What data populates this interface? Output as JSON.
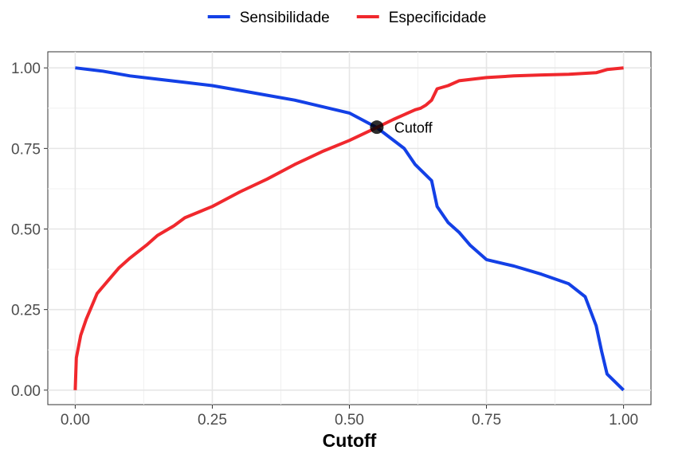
{
  "chart_data": {
    "type": "line",
    "title": "",
    "xlabel": "Cutoff",
    "ylabel": "",
    "xlim": [
      -0.05,
      1.05
    ],
    "ylim": [
      -0.045,
      1.05
    ],
    "x_ticks": [
      0.0,
      0.25,
      0.5,
      0.75,
      1.0
    ],
    "x_tick_labels": [
      "0.00",
      "0.25",
      "0.50",
      "0.75",
      "1.00"
    ],
    "y_ticks": [
      0.0,
      0.25,
      0.5,
      0.75,
      1.0
    ],
    "y_tick_labels": [
      "0.00",
      "0.25",
      "0.50",
      "0.75",
      "1.00"
    ],
    "grid": true,
    "legend_position": "top",
    "series": [
      {
        "name": "Sensibilidade",
        "color": "#1340E6",
        "points": [
          [
            0.0,
            1.0
          ],
          [
            0.05,
            0.99
          ],
          [
            0.1,
            0.975
          ],
          [
            0.15,
            0.965
          ],
          [
            0.2,
            0.955
          ],
          [
            0.25,
            0.945
          ],
          [
            0.3,
            0.93
          ],
          [
            0.35,
            0.915
          ],
          [
            0.4,
            0.9
          ],
          [
            0.45,
            0.88
          ],
          [
            0.5,
            0.86
          ],
          [
            0.55,
            0.815
          ],
          [
            0.6,
            0.75
          ],
          [
            0.62,
            0.7
          ],
          [
            0.65,
            0.65
          ],
          [
            0.66,
            0.57
          ],
          [
            0.68,
            0.52
          ],
          [
            0.7,
            0.49
          ],
          [
            0.72,
            0.45
          ],
          [
            0.75,
            0.405
          ],
          [
            0.8,
            0.385
          ],
          [
            0.85,
            0.36
          ],
          [
            0.9,
            0.33
          ],
          [
            0.93,
            0.29
          ],
          [
            0.95,
            0.2
          ],
          [
            0.96,
            0.12
          ],
          [
            0.97,
            0.05
          ],
          [
            1.0,
            0.0
          ]
        ]
      },
      {
        "name": "Especificidade",
        "color": "#F0282D",
        "points": [
          [
            0.0,
            0.0
          ],
          [
            0.002,
            0.1
          ],
          [
            0.01,
            0.17
          ],
          [
            0.02,
            0.22
          ],
          [
            0.04,
            0.3
          ],
          [
            0.06,
            0.34
          ],
          [
            0.08,
            0.38
          ],
          [
            0.1,
            0.41
          ],
          [
            0.13,
            0.45
          ],
          [
            0.15,
            0.48
          ],
          [
            0.18,
            0.51
          ],
          [
            0.2,
            0.535
          ],
          [
            0.25,
            0.57
          ],
          [
            0.3,
            0.615
          ],
          [
            0.35,
            0.655
          ],
          [
            0.4,
            0.7
          ],
          [
            0.45,
            0.74
          ],
          [
            0.5,
            0.775
          ],
          [
            0.55,
            0.815
          ],
          [
            0.58,
            0.84
          ],
          [
            0.6,
            0.855
          ],
          [
            0.62,
            0.87
          ],
          [
            0.63,
            0.875
          ],
          [
            0.64,
            0.885
          ],
          [
            0.65,
            0.9
          ],
          [
            0.66,
            0.935
          ],
          [
            0.68,
            0.945
          ],
          [
            0.7,
            0.96
          ],
          [
            0.75,
            0.97
          ],
          [
            0.8,
            0.975
          ],
          [
            0.85,
            0.978
          ],
          [
            0.9,
            0.98
          ],
          [
            0.95,
            0.985
          ],
          [
            0.97,
            0.995
          ],
          [
            1.0,
            1.0
          ]
        ]
      }
    ],
    "annotation": {
      "label": "Cutoff",
      "x": 0.55,
      "y": 0.816
    }
  }
}
